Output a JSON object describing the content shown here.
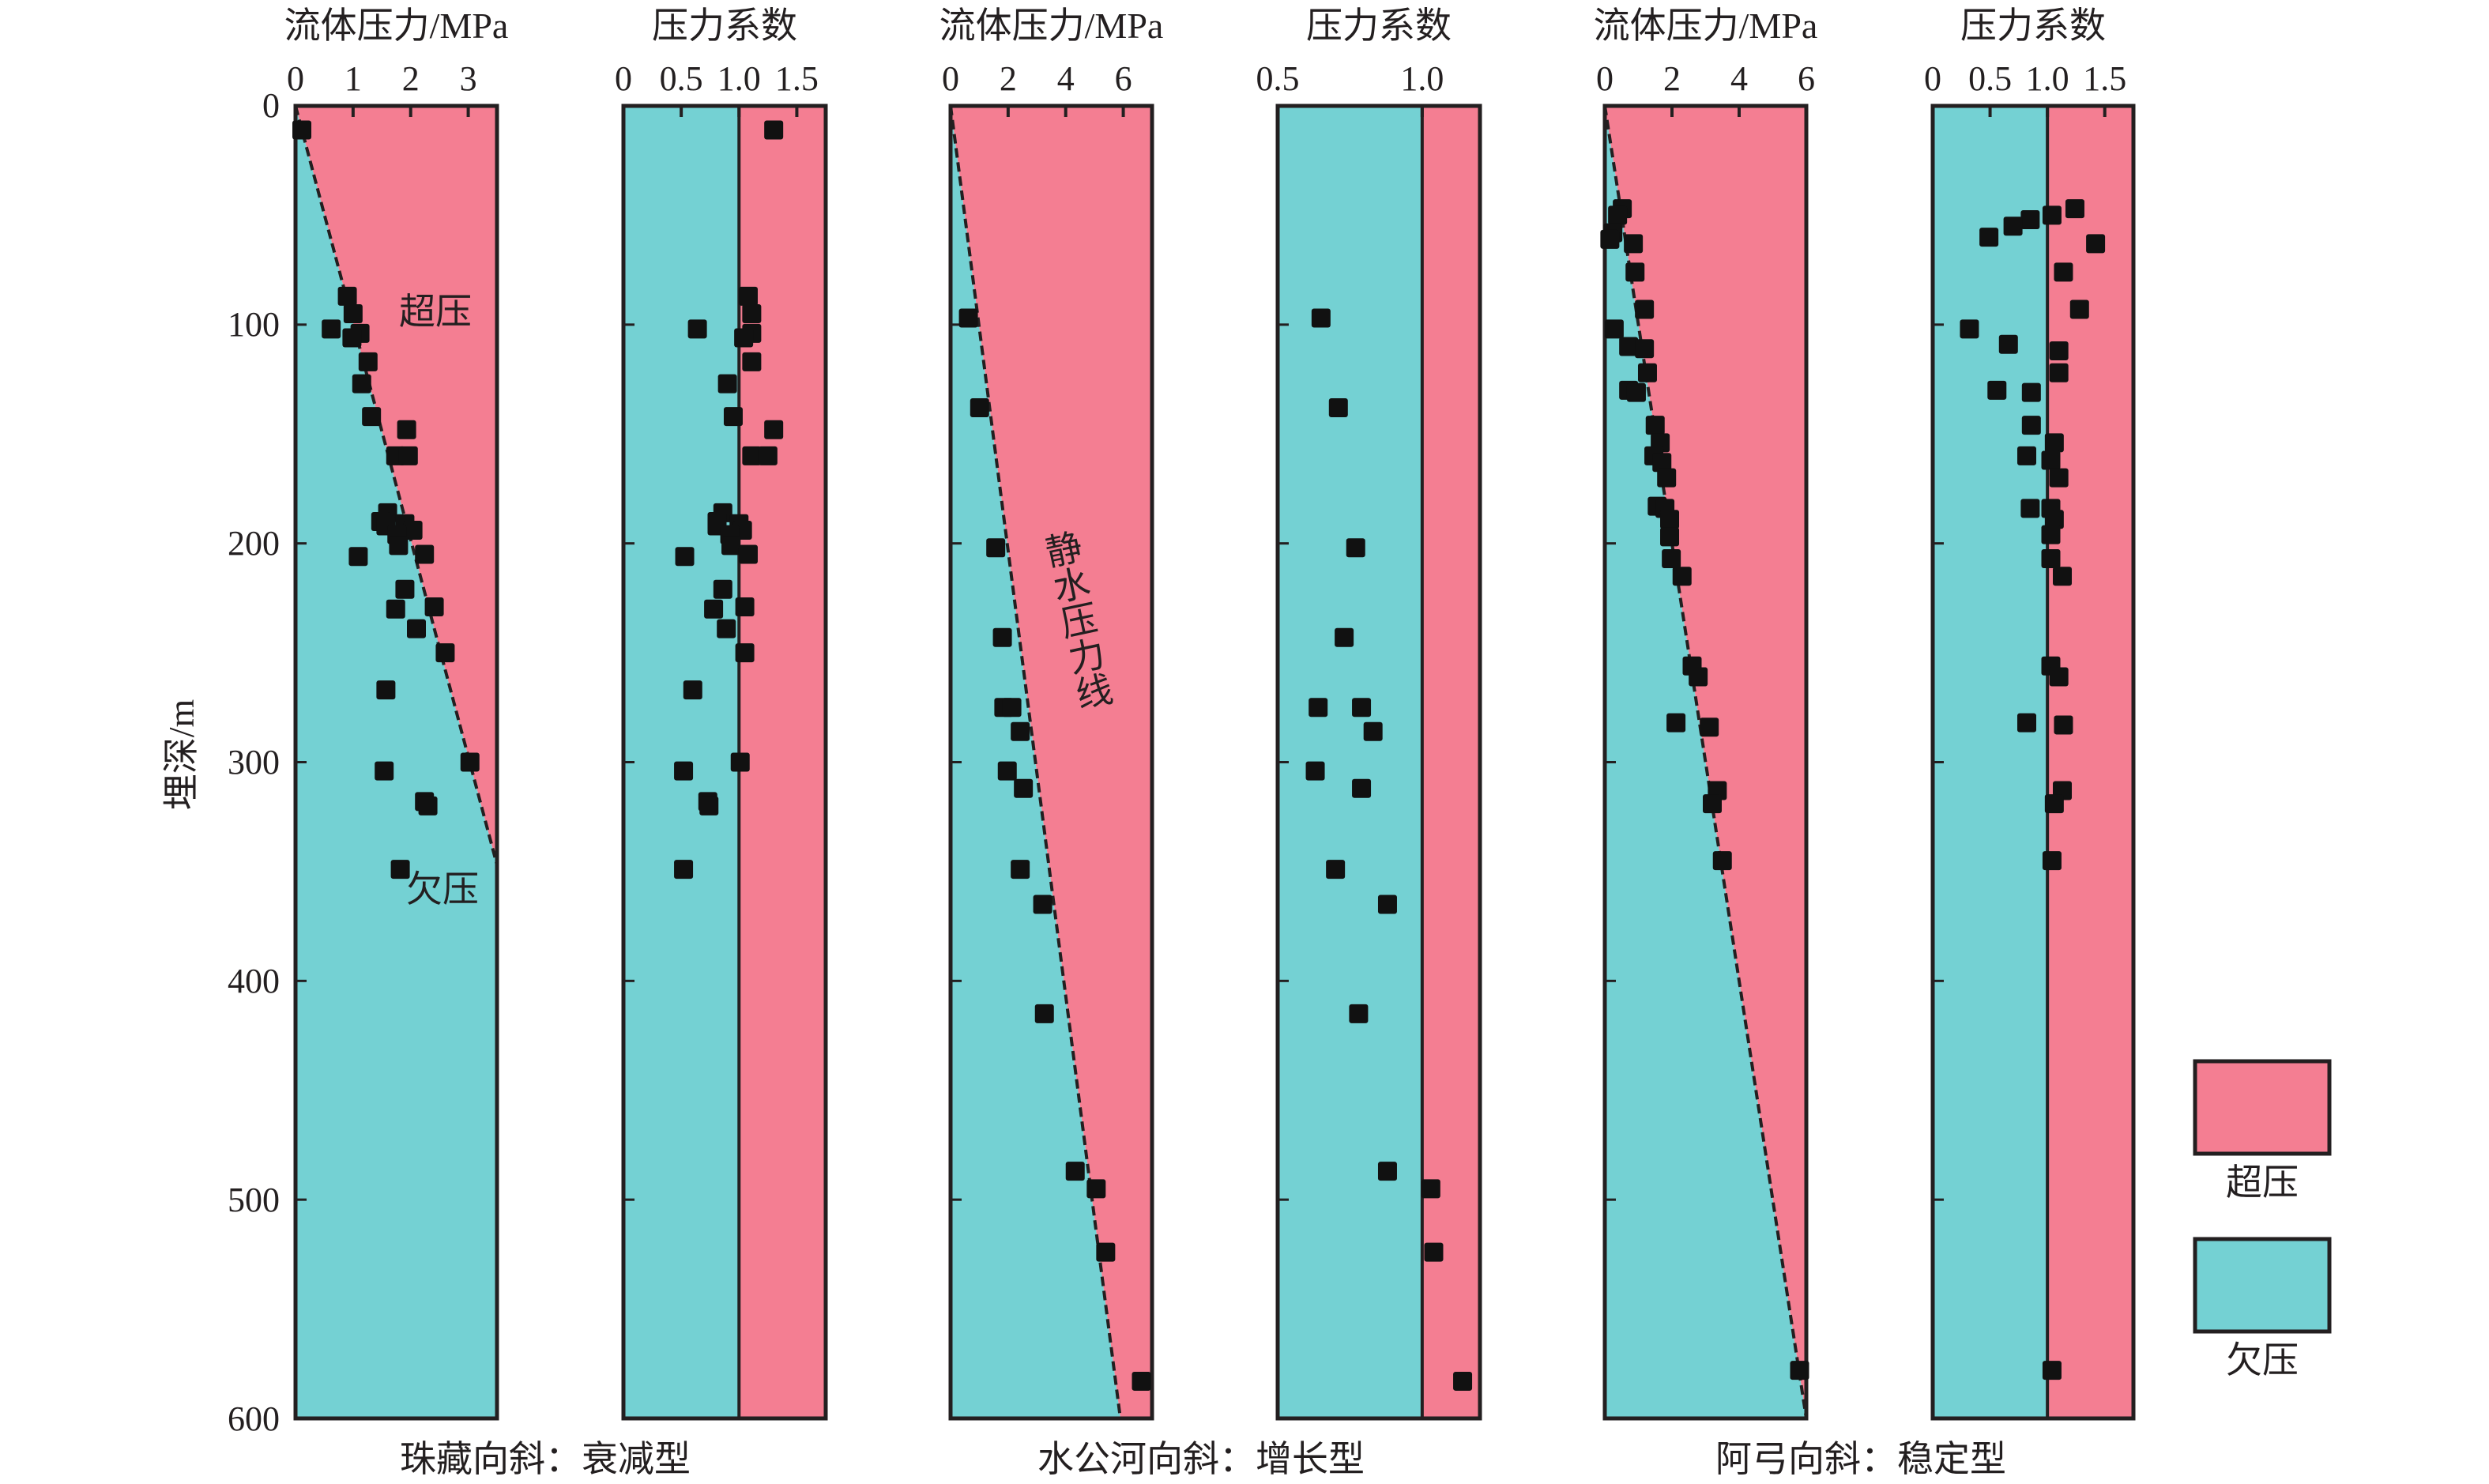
{
  "colors": {
    "overpressure": "#F47E92",
    "underpressure": "#74D1D3",
    "frame": "#231f20",
    "marker": "#111111"
  },
  "y_axis": {
    "label": "埋深/m",
    "ticks": [
      "0",
      "100",
      "200",
      "300",
      "400",
      "500",
      "600"
    ]
  },
  "groups": [
    {
      "caption": "珠藏向斜：衰减型"
    },
    {
      "caption": "水公河向斜：增长型"
    },
    {
      "caption": "阿弓向斜：稳定型"
    }
  ],
  "annotations": {
    "overpressure": "超压",
    "underpressure": "欠压",
    "hydrostatic_line": "静水压力线"
  },
  "legend": {
    "items": [
      {
        "label": "超压",
        "color_key": "overpressure"
      },
      {
        "label": "欠压",
        "color_key": "underpressure"
      }
    ]
  },
  "chart_data": [
    {
      "type": "scatter",
      "title": "流体压力/MPa",
      "group": "珠藏向斜：衰减型",
      "xlabel": "流体压力/MPa",
      "ylabel": "埋深/m",
      "xlim": [
        0,
        3.5
      ],
      "ylim": [
        0,
        600
      ],
      "x_ticks": [
        0,
        1,
        2,
        3
      ],
      "x_tick_labels": [
        "0",
        "1",
        "2",
        "3"
      ],
      "hydrostatic_line": {
        "x": [
          0,
          3.5
        ],
        "y": [
          0,
          347
        ]
      },
      "points": [
        [
          0.11,
          11
        ],
        [
          0.9,
          87
        ],
        [
          1.0,
          95
        ],
        [
          0.62,
          102
        ],
        [
          1.12,
          104
        ],
        [
          0.98,
          106
        ],
        [
          1.26,
          117
        ],
        [
          1.15,
          127
        ],
        [
          1.32,
          142
        ],
        [
          1.93,
          148
        ],
        [
          1.74,
          160
        ],
        [
          1.96,
          160
        ],
        [
          1.6,
          186
        ],
        [
          1.48,
          190
        ],
        [
          1.9,
          191
        ],
        [
          1.57,
          192
        ],
        [
          2.04,
          194
        ],
        [
          1.76,
          196
        ],
        [
          1.79,
          201
        ],
        [
          2.24,
          205
        ],
        [
          1.09,
          206
        ],
        [
          1.9,
          221
        ],
        [
          2.41,
          229
        ],
        [
          1.74,
          230
        ],
        [
          2.1,
          239
        ],
        [
          2.6,
          250
        ],
        [
          1.57,
          267
        ],
        [
          3.03,
          300
        ],
        [
          1.54,
          304
        ],
        [
          2.24,
          318
        ],
        [
          2.3,
          320
        ],
        [
          1.82,
          349
        ]
      ]
    },
    {
      "type": "scatter",
      "title": "压力系数",
      "group": "珠藏向斜：衰减型",
      "xlabel": "压力系数",
      "ylabel": "埋深/m",
      "xlim": [
        0,
        1.75
      ],
      "ylim": [
        0,
        600
      ],
      "x_ticks": [
        0,
        0.5,
        1.0,
        1.5
      ],
      "x_tick_labels": [
        "0",
        "0.5",
        "1.0",
        "1.5"
      ],
      "divider": 1.0,
      "points": [
        [
          1.3,
          11
        ],
        [
          1.08,
          87
        ],
        [
          1.11,
          95
        ],
        [
          0.64,
          102
        ],
        [
          1.11,
          104
        ],
        [
          1.04,
          106
        ],
        [
          1.11,
          117
        ],
        [
          0.9,
          127
        ],
        [
          0.95,
          142
        ],
        [
          1.3,
          148
        ],
        [
          1.11,
          160
        ],
        [
          1.25,
          160
        ],
        [
          0.86,
          186
        ],
        [
          0.81,
          190
        ],
        [
          1.0,
          191
        ],
        [
          0.81,
          192
        ],
        [
          1.03,
          194
        ],
        [
          0.92,
          196
        ],
        [
          0.93,
          201
        ],
        [
          1.08,
          205
        ],
        [
          0.53,
          206
        ],
        [
          0.86,
          221
        ],
        [
          1.05,
          229
        ],
        [
          0.78,
          230
        ],
        [
          0.89,
          239
        ],
        [
          1.05,
          250
        ],
        [
          0.6,
          267
        ],
        [
          1.01,
          300
        ],
        [
          0.52,
          304
        ],
        [
          0.73,
          318
        ],
        [
          0.74,
          320
        ],
        [
          0.52,
          349
        ]
      ]
    },
    {
      "type": "scatter",
      "title": "流体压力/MPa",
      "group": "水公河向斜：增长型",
      "xlabel": "流体压力/MPa",
      "ylabel": "埋深/m",
      "xlim": [
        0,
        7
      ],
      "ylim": [
        0,
        600
      ],
      "x_ticks": [
        0,
        2,
        4,
        6
      ],
      "x_tick_labels": [
        "0",
        "2",
        "4",
        "6"
      ],
      "hydrostatic_line": {
        "x": [
          0,
          5.9
        ],
        "y": [
          0,
          600
        ]
      },
      "points": [
        [
          0.62,
          97
        ],
        [
          1.01,
          138
        ],
        [
          1.57,
          202
        ],
        [
          1.8,
          243
        ],
        [
          1.85,
          275
        ],
        [
          2.13,
          275
        ],
        [
          2.42,
          286
        ],
        [
          1.97,
          304
        ],
        [
          2.53,
          312
        ],
        [
          2.42,
          349
        ],
        [
          3.2,
          365
        ],
        [
          3.26,
          415
        ],
        [
          4.33,
          487
        ],
        [
          5.06,
          495
        ],
        [
          5.39,
          524
        ],
        [
          6.63,
          583
        ]
      ]
    },
    {
      "type": "scatter",
      "title": "压力系数",
      "group": "水公河向斜：增长型",
      "xlabel": "压力系数",
      "ylabel": "埋深/m",
      "xlim": [
        0.5,
        1.2
      ],
      "ylim": [
        0,
        600
      ],
      "x_ticks": [
        0.5,
        1.0
      ],
      "x_tick_labels": [
        "0.5",
        "1.0"
      ],
      "divider": 1.0,
      "points": [
        [
          0.65,
          97
        ],
        [
          0.71,
          138
        ],
        [
          0.77,
          202
        ],
        [
          0.73,
          243
        ],
        [
          0.64,
          275
        ],
        [
          0.79,
          275
        ],
        [
          0.83,
          286
        ],
        [
          0.63,
          304
        ],
        [
          0.79,
          312
        ],
        [
          0.7,
          349
        ],
        [
          0.88,
          365
        ],
        [
          0.78,
          415
        ],
        [
          0.88,
          487
        ],
        [
          1.03,
          495
        ],
        [
          1.04,
          524
        ],
        [
          1.14,
          583
        ]
      ]
    },
    {
      "type": "scatter",
      "title": "流体压力/MPa",
      "group": "阿弓向斜：稳定型",
      "xlabel": "流体压力/MPa",
      "ylabel": "埋深/m",
      "xlim": [
        0,
        6
      ],
      "ylim": [
        0,
        600
      ],
      "x_ticks": [
        0,
        2,
        4,
        6
      ],
      "x_tick_labels": [
        "0",
        "2",
        "4",
        "6"
      ],
      "hydrostatic_line": {
        "x": [
          0,
          6
        ],
        "y": [
          0,
          600
        ]
      },
      "points": [
        [
          0.52,
          47
        ],
        [
          0.38,
          50
        ],
        [
          0.24,
          58
        ],
        [
          0.15,
          61
        ],
        [
          0.85,
          63
        ],
        [
          0.9,
          76
        ],
        [
          1.18,
          93
        ],
        [
          0.28,
          102
        ],
        [
          0.71,
          110
        ],
        [
          1.18,
          111
        ],
        [
          1.27,
          122
        ],
        [
          0.71,
          130
        ],
        [
          0.94,
          131
        ],
        [
          1.5,
          146
        ],
        [
          1.65,
          154
        ],
        [
          1.46,
          160
        ],
        [
          1.7,
          163
        ],
        [
          1.84,
          170
        ],
        [
          1.56,
          183
        ],
        [
          1.79,
          184
        ],
        [
          1.93,
          189
        ],
        [
          1.93,
          197
        ],
        [
          1.98,
          207
        ],
        [
          2.3,
          215
        ],
        [
          2.6,
          256
        ],
        [
          2.78,
          261
        ],
        [
          2.12,
          282
        ],
        [
          3.11,
          284
        ],
        [
          3.35,
          313
        ],
        [
          3.2,
          319
        ],
        [
          3.5,
          345
        ],
        [
          5.8,
          578
        ]
      ]
    },
    {
      "type": "scatter",
      "title": "压力系数",
      "group": "阿弓向斜：稳定型",
      "xlabel": "压力系数",
      "ylabel": "埋深/m",
      "xlim": [
        0,
        1.75
      ],
      "ylim": [
        0,
        600
      ],
      "x_ticks": [
        0,
        0.5,
        1.0,
        1.5
      ],
      "x_tick_labels": [
        "0",
        "0.5",
        "1.0",
        "1.5"
      ],
      "divider": 1.0,
      "points": [
        [
          1.24,
          47
        ],
        [
          1.04,
          50
        ],
        [
          0.85,
          52
        ],
        [
          0.7,
          55
        ],
        [
          0.49,
          60
        ],
        [
          1.42,
          63
        ],
        [
          1.14,
          76
        ],
        [
          1.28,
          93
        ],
        [
          0.32,
          102
        ],
        [
          0.66,
          109
        ],
        [
          1.1,
          112
        ],
        [
          1.1,
          122
        ],
        [
          0.56,
          130
        ],
        [
          0.86,
          131
        ],
        [
          0.86,
          146
        ],
        [
          1.06,
          154
        ],
        [
          0.82,
          160
        ],
        [
          1.03,
          162
        ],
        [
          1.1,
          170
        ],
        [
          0.85,
          184
        ],
        [
          1.03,
          184
        ],
        [
          1.06,
          189
        ],
        [
          1.03,
          196
        ],
        [
          1.03,
          207
        ],
        [
          1.13,
          215
        ],
        [
          1.03,
          256
        ],
        [
          1.1,
          261
        ],
        [
          0.82,
          282
        ],
        [
          1.14,
          283
        ],
        [
          1.13,
          313
        ],
        [
          1.06,
          319
        ],
        [
          1.04,
          345
        ],
        [
          1.04,
          578
        ]
      ]
    }
  ]
}
